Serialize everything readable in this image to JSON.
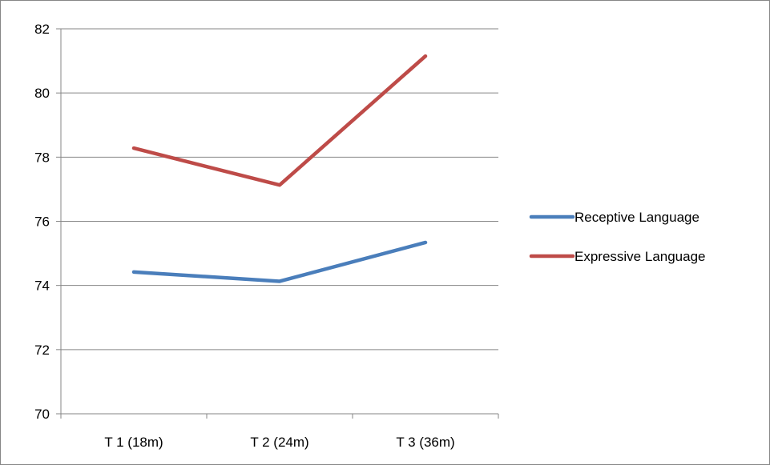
{
  "chart_data": {
    "type": "line",
    "categories": [
      "T 1 (18m)",
      "T 2 (24m)",
      "T 3 (36m)"
    ],
    "series": [
      {
        "name": "Receptive Language",
        "color": "#4a7ebb",
        "values": [
          74.42,
          74.13,
          75.34
        ]
      },
      {
        "name": "Expressive Language",
        "color": "#be4b48",
        "values": [
          78.28,
          77.13,
          81.15
        ]
      }
    ],
    "ylim": [
      70,
      82
    ],
    "yticks": [
      "70",
      "72",
      "74",
      "76",
      "78",
      "80",
      "82"
    ],
    "grid": "horizontal",
    "legend_position": "right",
    "title": "",
    "xlabel": "",
    "ylabel": ""
  }
}
